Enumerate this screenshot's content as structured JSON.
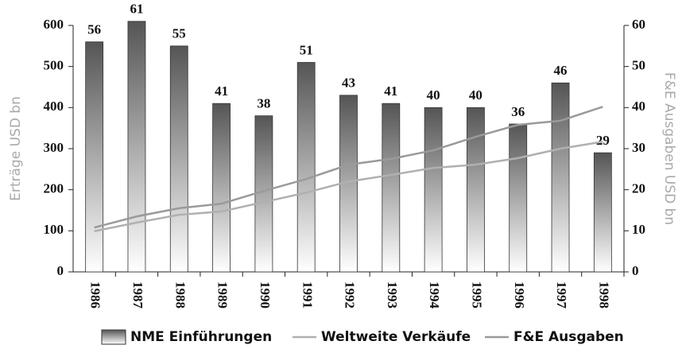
{
  "chart_data": {
    "type": "bar",
    "categories": [
      "1986",
      "1987",
      "1988",
      "1989",
      "1990",
      "1991",
      "1992",
      "1993",
      "1994",
      "1995",
      "1996",
      "1997",
      "1998"
    ],
    "series": [
      {
        "name": "NME Einführungen",
        "type": "bar",
        "axis": "y2",
        "color": "#555555",
        "values": [
          56,
          61,
          55,
          41,
          38,
          51,
          43,
          41,
          40,
          40,
          36,
          46,
          29
        ]
      },
      {
        "name": "Weltweite Verkäufe",
        "type": "line",
        "axis": "y",
        "color": "#b0b0b0",
        "values": [
          99,
          120,
          139,
          147,
          170,
          193,
          220,
          236,
          253,
          261,
          277,
          300,
          317
        ]
      },
      {
        "name": "F&E Ausgaben",
        "type": "line",
        "axis": "y2",
        "color": "#9a9a9a",
        "values": [
          10.8,
          13.5,
          15.5,
          16.6,
          19.7,
          22.6,
          26.1,
          27.5,
          29.6,
          32.9,
          35.8,
          36.8,
          40.2
        ]
      }
    ],
    "ylabel": "Erträge USD bn",
    "y2label": "F&E Ausgaben USD bn",
    "ylim": [
      0,
      600
    ],
    "yticks": [
      0,
      100,
      200,
      300,
      400,
      500,
      600
    ],
    "y2lim": [
      0,
      60
    ],
    "y2ticks": [
      0,
      10,
      20,
      30,
      40,
      50,
      60
    ]
  }
}
